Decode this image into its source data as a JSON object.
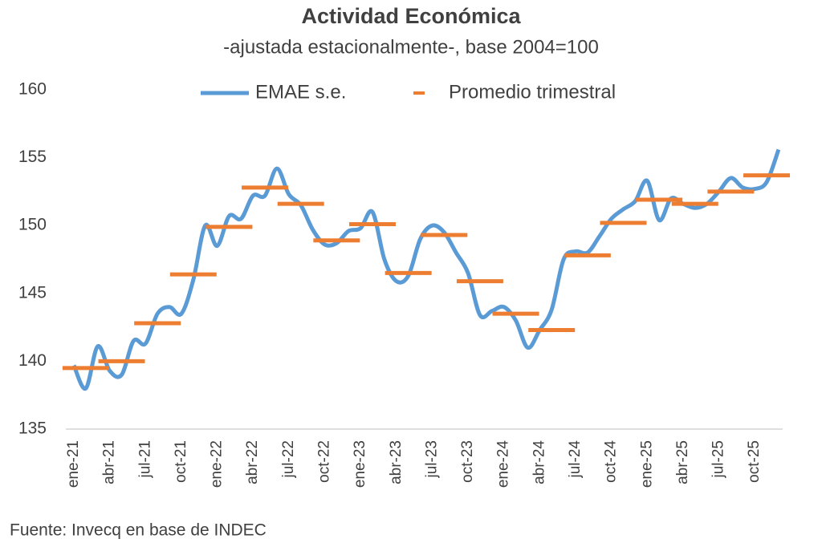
{
  "chart_data": {
    "type": "line",
    "title": "Actividad Económica",
    "subtitle": "-ajustada estacionalmente-, base 2004=100",
    "source": "Fuente: Invecq en base de INDEC",
    "categories": [
      "ene-21",
      null,
      null,
      "abr-21",
      null,
      null,
      "jul-21",
      null,
      null,
      "oct-21",
      null,
      null,
      "ene-22",
      null,
      null,
      "abr-22",
      null,
      null,
      "jul-22",
      null,
      null,
      "oct-22",
      null,
      null,
      "ene-23",
      null,
      null,
      "abr-23",
      null,
      null,
      "jul-23",
      null,
      null,
      "oct-23",
      null,
      null,
      "ene-24",
      null,
      null,
      "abr-24",
      null,
      null,
      "jul-24",
      null,
      null,
      "oct-24",
      null,
      null,
      "ene-25",
      null,
      null,
      "abr-25",
      null,
      null,
      "jul-25",
      null,
      null,
      "oct-25",
      null,
      null
    ],
    "series": [
      {
        "name": "EMAE s.e.",
        "color": "#5b9bd5",
        "style": "line",
        "values": [
          139.7,
          138.0,
          141.1,
          139.3,
          139.0,
          141.5,
          141.3,
          143.5,
          144.0,
          143.5,
          146.0,
          150.0,
          148.5,
          150.7,
          150.5,
          152.2,
          152.2,
          154.2,
          152.3,
          151.5,
          149.7,
          148.6,
          148.7,
          149.6,
          149.8,
          151.0,
          147.5,
          145.9,
          146.3,
          149.0,
          150.0,
          149.5,
          148.0,
          146.5,
          143.4,
          143.7,
          144.0,
          143.0,
          141.0,
          142.3,
          143.8,
          147.5,
          148.1,
          148.0,
          149.2,
          150.5,
          151.2,
          151.8,
          153.3,
          150.4,
          152.0,
          151.6,
          151.3,
          151.6,
          152.5,
          153.5,
          152.8,
          152.7,
          153.2,
          155.6
        ]
      },
      {
        "name": "Promedio trimestral",
        "color": "#ed7d31",
        "style": "dash",
        "values": [
          null,
          139.5,
          null,
          null,
          140.0,
          null,
          null,
          142.8,
          null,
          null,
          146.4,
          null,
          null,
          149.9,
          null,
          null,
          152.8,
          null,
          null,
          151.6,
          null,
          null,
          148.9,
          null,
          null,
          150.1,
          null,
          null,
          146.5,
          null,
          null,
          149.3,
          null,
          null,
          145.9,
          null,
          null,
          143.5,
          null,
          null,
          142.3,
          null,
          null,
          147.8,
          null,
          null,
          150.2,
          null,
          null,
          151.9,
          null,
          null,
          151.6,
          null,
          null,
          152.5,
          null,
          null,
          153.7,
          null
        ]
      }
    ],
    "ylim": [
      135,
      160
    ],
    "yticks": [
      135,
      140,
      145,
      150,
      155,
      160
    ],
    "grid": false
  }
}
